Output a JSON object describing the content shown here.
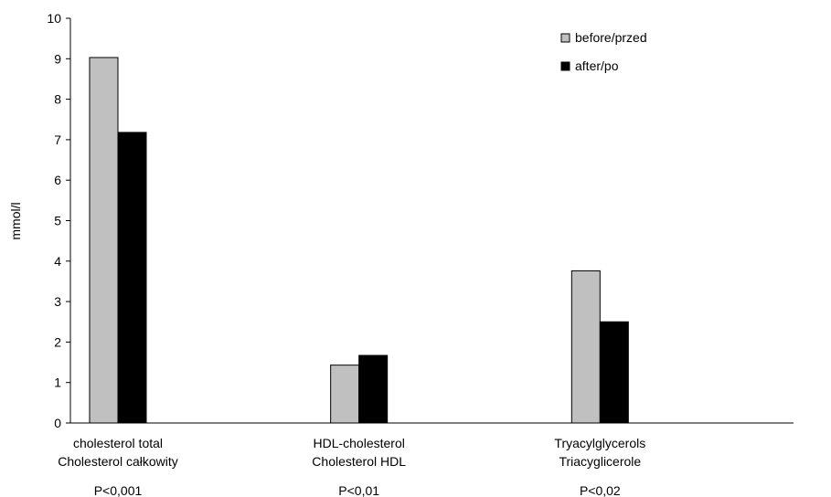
{
  "chart_data": {
    "type": "bar",
    "ylabel": "mmol/l",
    "ylim": [
      0,
      10
    ],
    "yticks": [
      "0",
      "1",
      "2",
      "3",
      "4",
      "5",
      "6",
      "7",
      "8",
      "9",
      "10"
    ],
    "grid": false,
    "legend_position": "top-right",
    "categories": [
      {
        "line1": "cholesterol total",
        "line2": "Cholesterol całkowity",
        "pvalue": "P<0,001"
      },
      {
        "line1": "HDL-cholesterol",
        "line2": "Cholesterol HDL",
        "pvalue": "P<0,01"
      },
      {
        "line1": "Tryacylglycerols",
        "line2": "Triacyglicerole",
        "pvalue": "P<0,02"
      }
    ],
    "series": [
      {
        "name": "before/przed",
        "color": "#c0c0c0",
        "values": [
          9.03,
          1.43,
          3.76
        ]
      },
      {
        "name": "after/po",
        "color": "#000000",
        "values": [
          7.18,
          1.67,
          2.5
        ]
      }
    ]
  }
}
